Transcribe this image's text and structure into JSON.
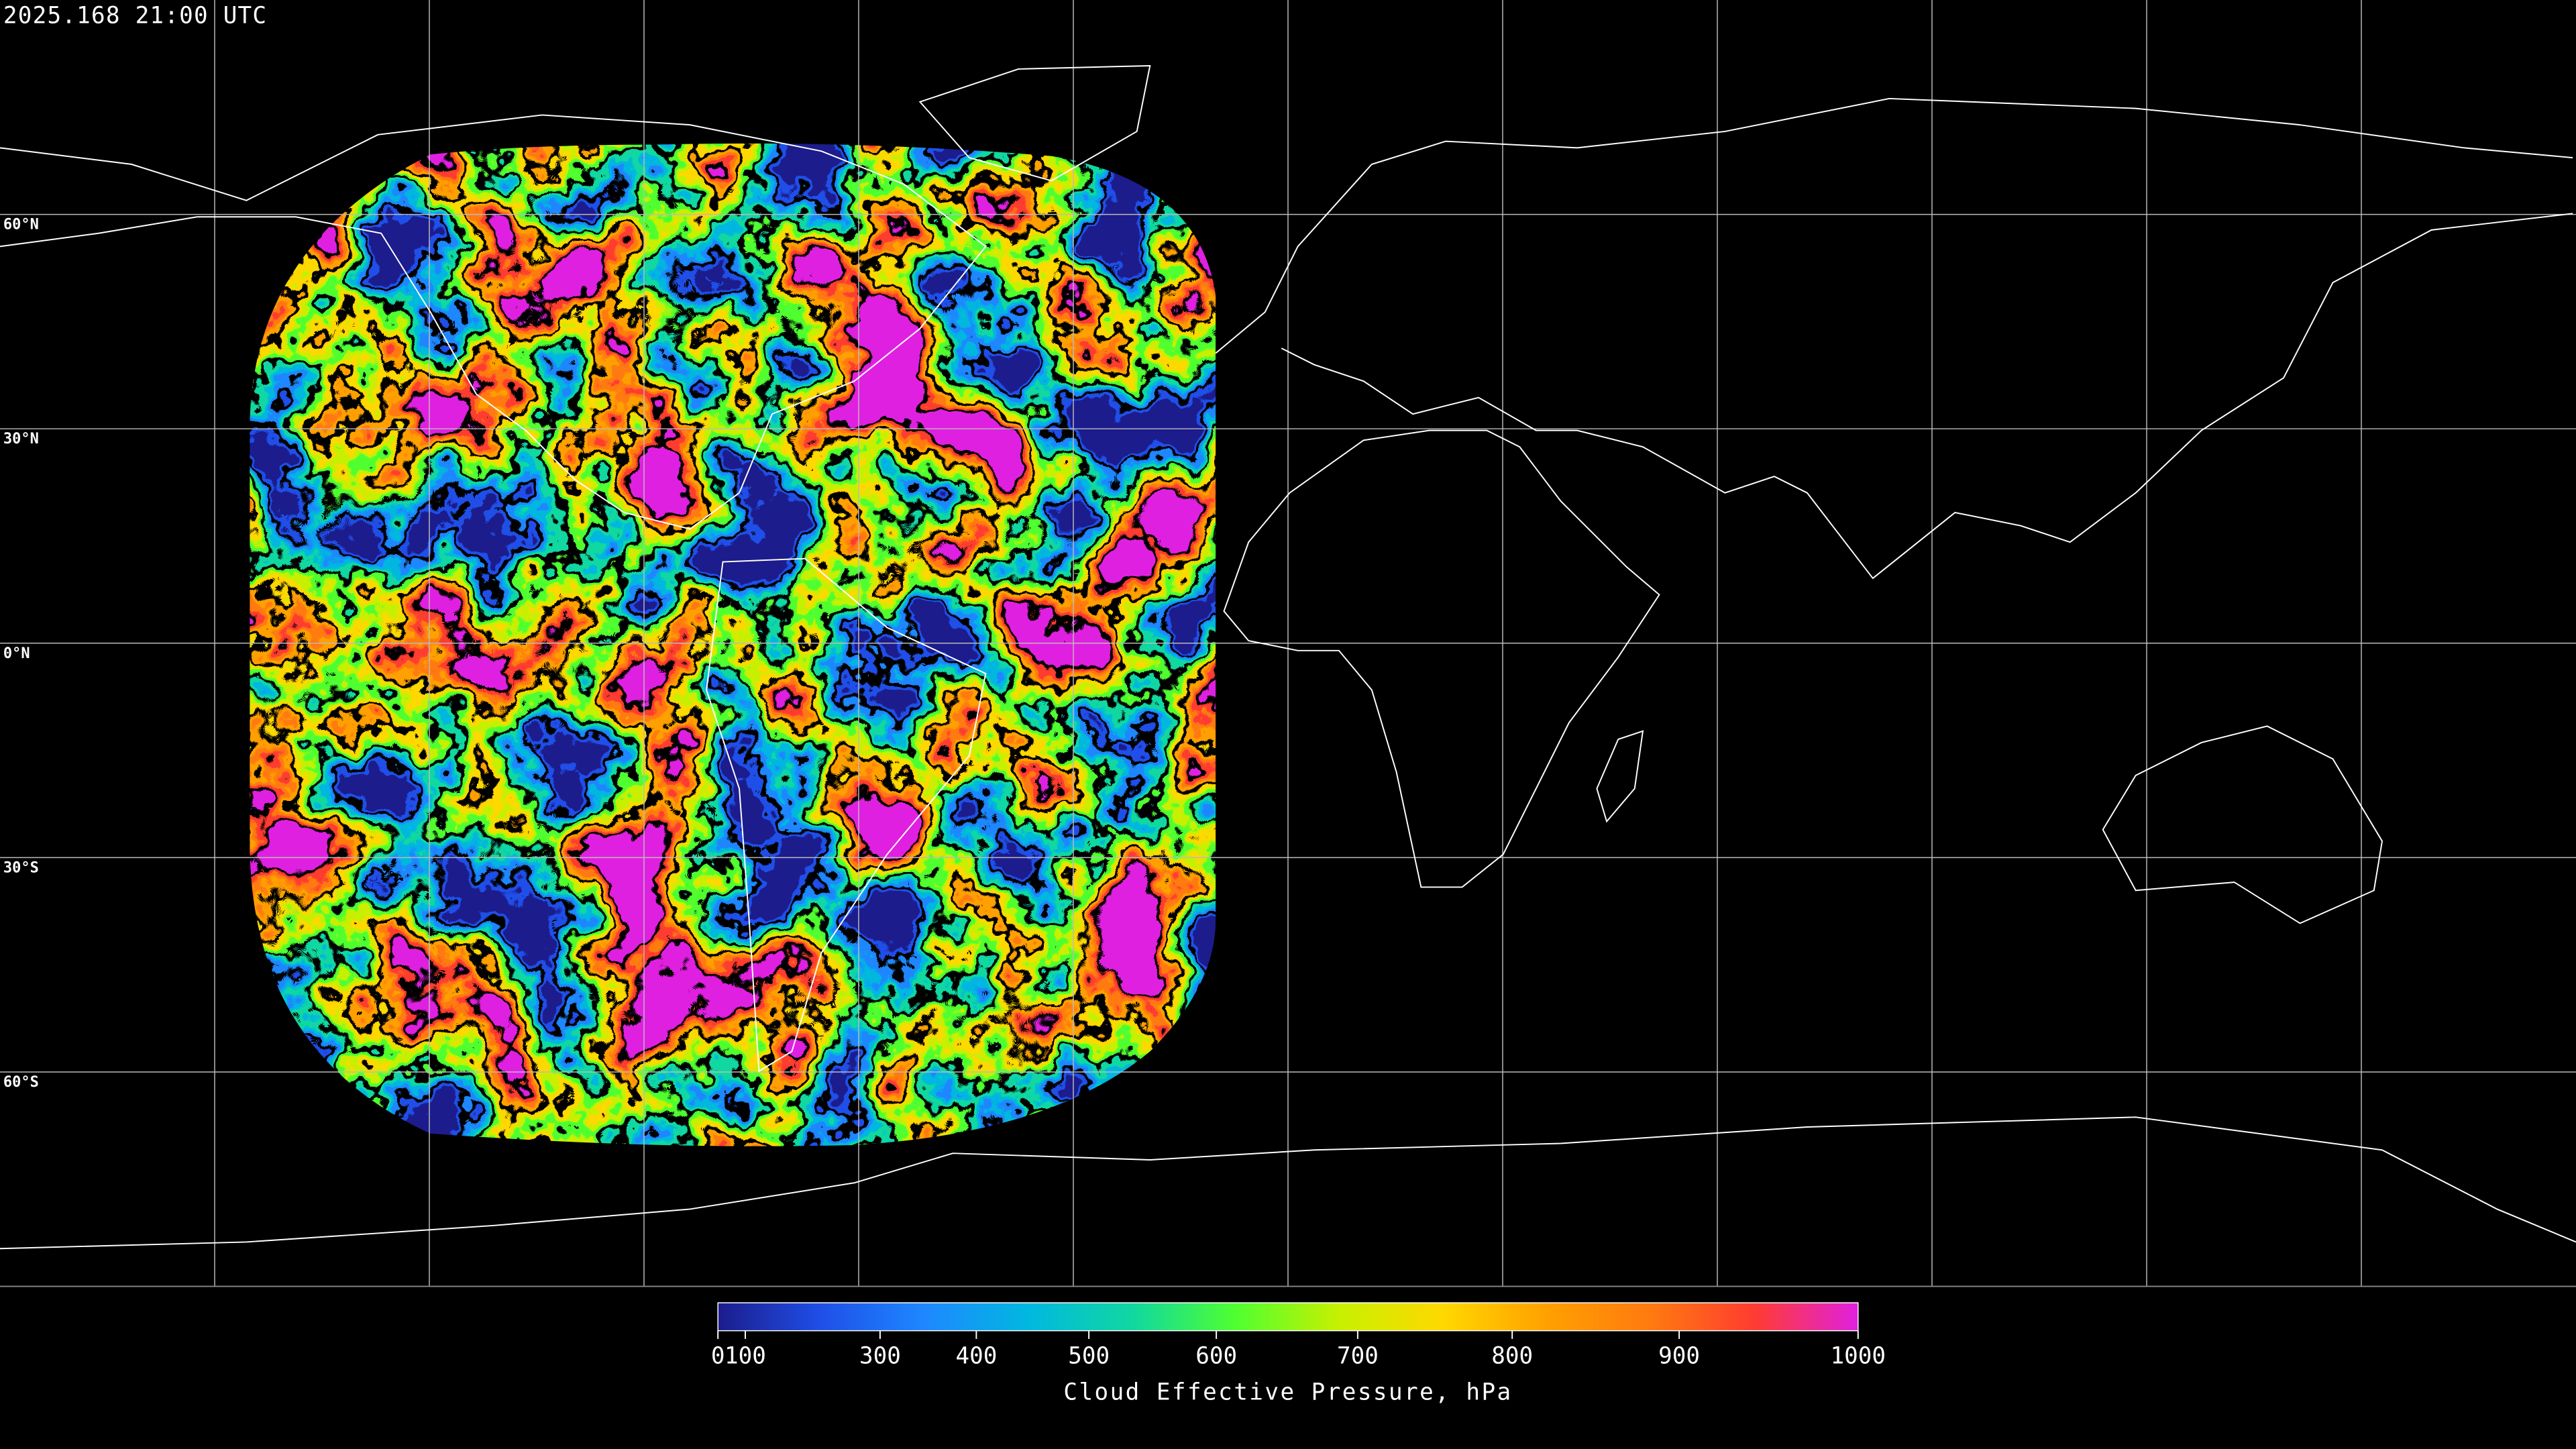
{
  "timestamp": "2025.168 21:00 UTC",
  "latitude_lines": [
    {
      "value": 60,
      "label": "60°N"
    },
    {
      "value": 30,
      "label": "30°N"
    },
    {
      "value": 0,
      "label": "0°N"
    },
    {
      "value": -30,
      "label": "30°S"
    },
    {
      "value": -60,
      "label": "60°S"
    }
  ],
  "colorbar": {
    "label": "Cloud Effective Pressure, hPa",
    "range": [
      0,
      1000
    ],
    "ticks": [
      0,
      100,
      300,
      400,
      500,
      600,
      700,
      800,
      900,
      1000
    ],
    "colors": [
      "#1c1c8c",
      "#1f4fe8",
      "#1e88ff",
      "#00b8e0",
      "#10d8a0",
      "#50ff30",
      "#c8f000",
      "#ffd800",
      "#ffa000",
      "#ff7a10",
      "#ff3c30",
      "#e020e0"
    ]
  }
}
